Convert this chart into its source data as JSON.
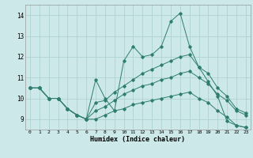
{
  "x": [
    0,
    1,
    2,
    3,
    4,
    5,
    6,
    7,
    8,
    9,
    10,
    11,
    12,
    13,
    14,
    15,
    16,
    17,
    18,
    19,
    20,
    21,
    22,
    23
  ],
  "line1": [
    10.5,
    10.5,
    10.0,
    10.0,
    9.5,
    9.2,
    9.0,
    10.9,
    10.0,
    9.4,
    11.8,
    12.5,
    12.0,
    12.1,
    12.5,
    13.7,
    14.1,
    12.5,
    11.5,
    10.8,
    10.1,
    8.9,
    8.7,
    8.6
  ],
  "line2": [
    10.5,
    10.5,
    10.0,
    10.0,
    9.5,
    9.2,
    9.0,
    9.8,
    9.9,
    10.3,
    10.6,
    10.9,
    11.2,
    11.4,
    11.6,
    11.8,
    12.0,
    12.1,
    11.5,
    11.2,
    10.5,
    10.1,
    9.5,
    9.3
  ],
  "line3": [
    10.5,
    10.5,
    10.0,
    10.0,
    9.5,
    9.2,
    9.0,
    9.4,
    9.6,
    9.9,
    10.2,
    10.4,
    10.6,
    10.7,
    10.9,
    11.0,
    11.2,
    11.3,
    11.0,
    10.7,
    10.2,
    9.9,
    9.4,
    9.2
  ],
  "line4": [
    10.5,
    10.5,
    10.0,
    10.0,
    9.5,
    9.2,
    9.0,
    9.0,
    9.2,
    9.4,
    9.5,
    9.7,
    9.8,
    9.9,
    10.0,
    10.1,
    10.2,
    10.3,
    10.0,
    9.8,
    9.4,
    9.1,
    8.7,
    8.6
  ],
  "line_color": "#2e7d6e",
  "bg_color": "#cce8e8",
  "grid_color": "#aacece",
  "xlabel": "Humidex (Indice chaleur)",
  "ylim": [
    8.5,
    14.5
  ],
  "xlim": [
    -0.5,
    23.5
  ],
  "yticks": [
    9,
    10,
    11,
    12,
    13,
    14
  ],
  "xticks": [
    0,
    1,
    2,
    3,
    4,
    5,
    6,
    7,
    8,
    9,
    10,
    11,
    12,
    13,
    14,
    15,
    16,
    17,
    18,
    19,
    20,
    21,
    22,
    23
  ]
}
